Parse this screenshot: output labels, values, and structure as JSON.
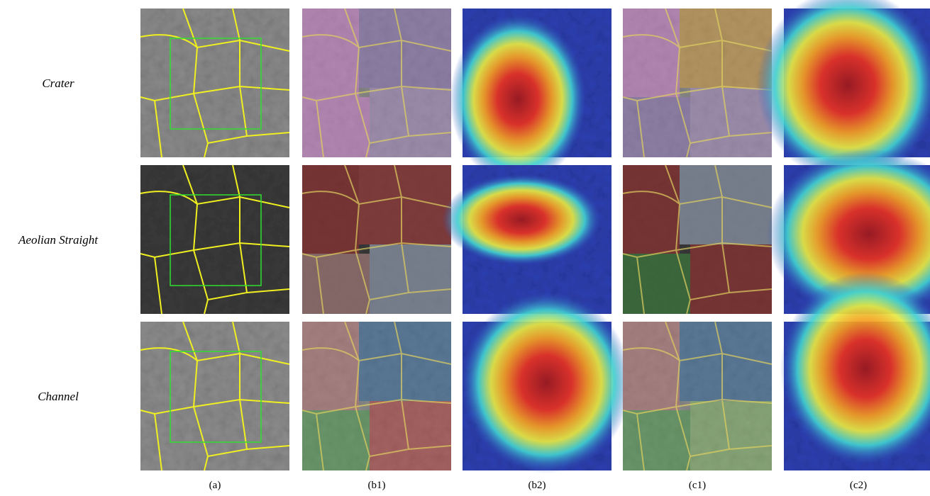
{
  "rows": [
    "Crater",
    "Aeolian Straight",
    "Channel"
  ],
  "columns": [
    "(a)",
    "(b1)",
    "(b2)",
    "(c1)",
    "(c2)"
  ]
}
